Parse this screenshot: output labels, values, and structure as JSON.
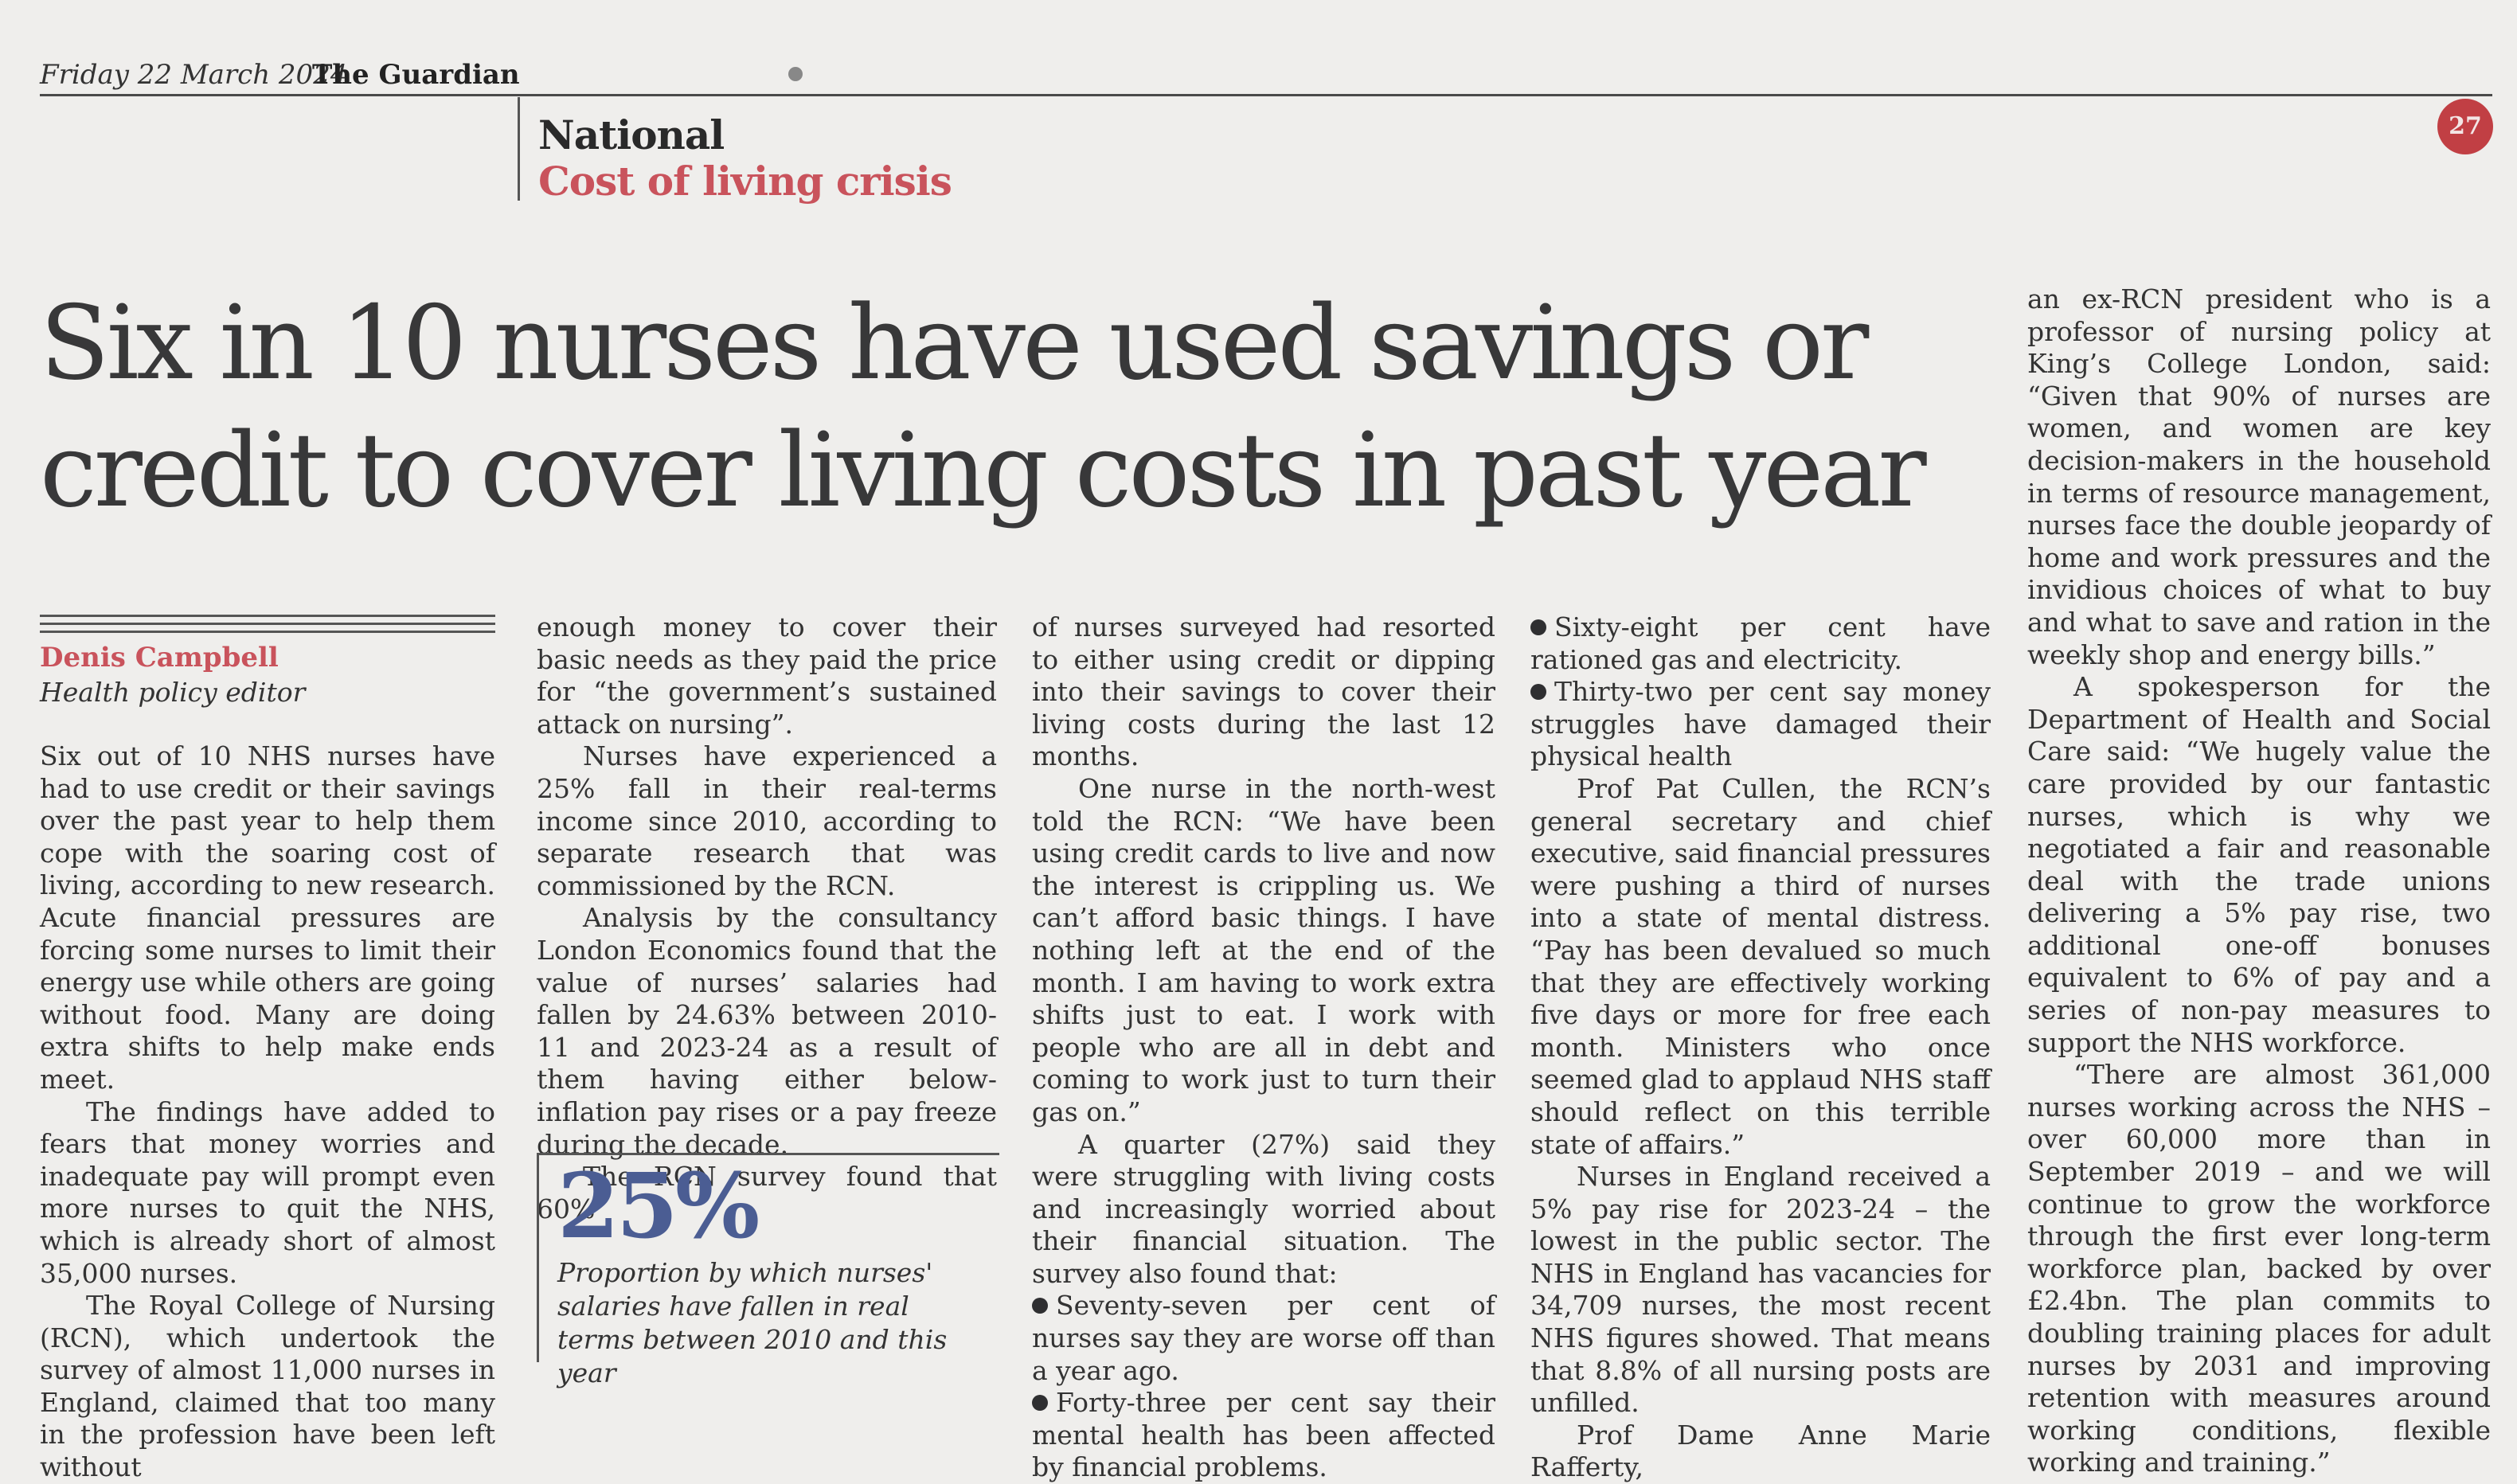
{
  "masthead": {
    "date": "Friday 22 March 2024",
    "paper": "The Guardian",
    "page_number": "27"
  },
  "section": {
    "name": "National",
    "topic": "Cost of living crisis"
  },
  "headline": "Six in 10 nurses have used savings or credit to cover living costs in past year",
  "byline": {
    "author": "Denis Campbell",
    "role": "Health policy editor"
  },
  "pull_quote": {
    "figure": "25%",
    "caption": "Proportion by which nurses' salaries have fallen in real terms between 2010 and this year"
  },
  "columns": {
    "c1": [
      "Six out of 10 NHS nurses have had to use credit or their savings over the past year to help them cope with the soaring cost of living, according to new research. Acute financial pressures are forcing some nurses to limit their energy use while others are going without food. Many are doing extra shifts to help make ends meet.",
      "The findings have added to fears that money worries and inadequate pay will prompt even more nurses to quit the NHS, which is already short of almost 35,000 nurses.",
      "The Royal College of Nursing (RCN), which undertook the survey of almost 11,000 nurses in England, claimed that too many in the profession have been left without"
    ],
    "c2": [
      "enough money to cover their basic needs as they paid the price for “the government’s sustained attack on nursing”.",
      "Nurses have experienced a 25% fall in their real-terms income since 2010, according to separate research that was commissioned by the RCN.",
      "Analysis by the consultancy London Economics found that the value of nurses’ salaries had fallen by 24.63% between 2010-11 and 2023-24 as a result of them having either below-inflation pay rises or a pay freeze during the decade.",
      "The RCN survey found that 60%"
    ],
    "c3": [
      "of nurses surveyed had resorted to either using credit or dipping into their savings to cover their living costs during the last 12 months.",
      "One nurse in the north-west told the RCN: “We have been using credit cards to live and now the interest is crippling us. We can’t afford basic things. I have nothing left at the end of the month. I am having to work extra shifts just to eat. I work with people who are all in debt and coming to work just to turn their gas on.”",
      "A quarter (27%) said they were struggling with living costs and increasingly worried about their financial situation. The survey also found that:",
      "Seventy-seven per cent of nurses say they are worse off than a year ago.",
      "Forty-three per cent say their mental health has been affected by financial problems."
    ],
    "c4": [
      "Sixty-eight per cent have rationed gas and electricity.",
      "Thirty-two per cent say money struggles have damaged their physical health",
      "Prof Pat Cullen, the RCN’s general secretary and chief executive, said financial pressures were pushing a third of nurses into a state of mental distress. “Pay has been devalued so much that they are effectively working five days or more for free each month. Ministers who once seemed glad to applaud NHS staff should reflect on this terrible state of affairs.”",
      "Nurses in England received a 5% pay rise for 2023-24 – the lowest in the public sector. The NHS in England has vacancies for 34,709 nurses, the most recent NHS figures showed. That means that 8.8% of all nursing posts are unfilled.",
      "Prof Dame Anne Marie Rafferty,"
    ],
    "c5": [
      "an ex-RCN president who is a professor of nursing policy at King’s College London, said: “Given that 90% of nurses are women, and women are key decision-makers in the household in terms of resource management, nurses face the double jeopardy of home and work pressures and the invidious choices of what to buy and what to save and ration in the weekly shop and energy bills.”",
      "A spokesperson for the Department of Health and Social Care said: “We hugely value the care provided by our fantastic nurses, which is why we negotiated a fair and reasonable deal with the trade unions delivering a 5% pay rise, two additional one-off bonuses equivalent to 6% of pay and a series of non-pay measures to support the NHS workforce.",
      "“There are almost 361,000 nurses working across the NHS – over 60,000 more than in September 2019 – and we will continue to grow the workforce through the first ever long-term workforce plan, backed by over £2.4bn. The plan commits to doubling training places for adult nurses by 2031 and improving retention with measures around working conditions, flexible working and training.”"
    ]
  }
}
